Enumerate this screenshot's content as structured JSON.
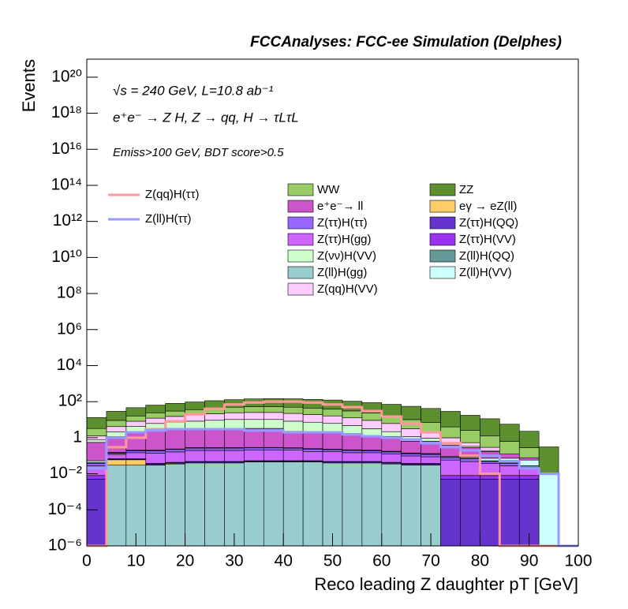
{
  "chart_data": {
    "type": "histogram",
    "title": "FCCAnalyses: FCC-ee Simulation (Delphes)",
    "annotations": [
      "√s = 240 GeV, L=10.8 ab⁻¹",
      "e⁺e⁻ → Z H, Z → qq, H → τLτL",
      "Emiss>100 GeV, BDT score>0.5"
    ],
    "x_label": "Reco leading Z daughter pT [GeV]",
    "y_label": "Events",
    "log_y": true,
    "stacked": true,
    "bins": [
      0,
      4,
      8,
      12,
      16,
      20,
      24,
      28,
      32,
      36,
      40,
      44,
      48,
      52,
      56,
      60,
      64,
      68,
      72,
      76,
      80,
      84,
      88,
      92,
      96,
      100
    ],
    "xlim": [
      0,
      100
    ],
    "xticks": [
      0,
      10,
      20,
      30,
      40,
      50,
      60,
      70,
      80,
      90,
      100
    ],
    "ylim": [
      1e-06,
      1e+21
    ],
    "yticks": [
      {
        "value": 1e-06,
        "label": "10⁻⁶"
      },
      {
        "value": 0.0001,
        "label": "10⁻⁴"
      },
      {
        "value": 0.01,
        "label": "10⁻²"
      },
      1,
      {
        "value": 100,
        "label": "10²"
      },
      {
        "value": 10000.0,
        "label": "10⁴"
      },
      {
        "value": 1000000.0,
        "label": "10⁶"
      },
      {
        "value": 100000000.0,
        "label": "10⁸"
      },
      {
        "value": 10000000000.0,
        "label": "10¹⁰"
      },
      {
        "value": 1000000000000.0,
        "label": "10¹²"
      },
      {
        "value": 100000000000000.0,
        "label": "10¹⁴"
      },
      {
        "value": 1e+16,
        "label": "10¹⁶"
      },
      {
        "value": 1e+18,
        "label": "10¹⁸"
      },
      {
        "value": 1e+20,
        "label": "10²⁰"
      }
    ],
    "series": [
      {
        "name": "Z(ll)H(gg)",
        "color": "#99cccc",
        "style": "fill",
        "values": [
          0,
          0.03,
          0.03,
          0.03,
          0.035,
          0.04,
          0.04,
          0.04,
          0.045,
          0.045,
          0.045,
          0.045,
          0.04,
          0.04,
          0.04,
          0.035,
          0.03,
          0.03,
          0,
          0,
          0,
          0,
          0,
          0,
          0
        ]
      },
      {
        "name": "eγ → eZ(ll)",
        "color": "#ffcc66",
        "style": "fill",
        "values": [
          0,
          0.03,
          0.03,
          0,
          0,
          0,
          0,
          0,
          0,
          0,
          0,
          0,
          0,
          0,
          0,
          0,
          0,
          0,
          0,
          0,
          0,
          0,
          0,
          0,
          0
        ]
      },
      {
        "name": "Z(ττ)H(QQ)",
        "color": "#6633cc",
        "style": "fill",
        "values": [
          0.005,
          0.005,
          0.005,
          0.005,
          0.005,
          0.005,
          0.005,
          0.005,
          0.005,
          0.005,
          0.005,
          0.005,
          0.005,
          0.005,
          0.005,
          0.005,
          0.005,
          0.005,
          0.005,
          0.005,
          0.005,
          0.005,
          0.005,
          0,
          0
        ]
      },
      {
        "name": "Z(ττ)H(VV)",
        "color": "#9933ee",
        "style": "fill",
        "values": [
          0.003,
          0.003,
          0.003,
          0.003,
          0.003,
          0.003,
          0.003,
          0.003,
          0.003,
          0.003,
          0.003,
          0.003,
          0.003,
          0.003,
          0.003,
          0.003,
          0.003,
          0.003,
          0.003,
          0.003,
          0.003,
          0.003,
          0.003,
          0,
          0
        ]
      },
      {
        "name": "Z(ττ)H(gg)",
        "color": "#cc66ff",
        "style": "fill",
        "values": [
          0.02,
          0.05,
          0.08,
          0.1,
          0.12,
          0.15,
          0.15,
          0.15,
          0.15,
          0.15,
          0.15,
          0.12,
          0.12,
          0.1,
          0.1,
          0.08,
          0.06,
          0.05,
          0.05,
          0.04,
          0.03,
          0.02,
          0.01,
          0,
          0
        ]
      },
      {
        "name": "Z(ττ)H(ττ)",
        "color": "#9966ff",
        "style": "fill",
        "values": [
          0.01,
          0.02,
          0.04,
          0.05,
          0.06,
          0.07,
          0.07,
          0.07,
          0.07,
          0.07,
          0.06,
          0.06,
          0.05,
          0.05,
          0.04,
          0.04,
          0.03,
          0.03,
          0.02,
          0.02,
          0.01,
          0.01,
          0.005,
          0,
          0
        ]
      },
      {
        "name": "Z(ll)H(QQ)",
        "color": "#669999",
        "style": "fill",
        "values": [
          0.005,
          0.005,
          0.005,
          0.005,
          0.005,
          0.005,
          0.005,
          0.005,
          0.005,
          0.005,
          0.005,
          0.005,
          0.005,
          0.005,
          0.005,
          0.005,
          0.005,
          0.005,
          0.005,
          0.005,
          0.005,
          0.005,
          0.005,
          0,
          0
        ]
      },
      {
        "name": "Z(ll)H(VV)",
        "color": "#ccffff",
        "style": "fill",
        "values": [
          0.01,
          0.01,
          0.01,
          0.01,
          0.01,
          0.01,
          0.01,
          0.01,
          0.01,
          0.01,
          0.01,
          0.01,
          0.01,
          0.01,
          0.01,
          0.01,
          0.01,
          0.01,
          0.01,
          0.01,
          0.02,
          0.03,
          0.03,
          0.01,
          0
        ]
      },
      {
        "name": "e⁺e⁻→ ll",
        "color": "#cc55cc",
        "style": "fill",
        "values": [
          0.5,
          1,
          2,
          3,
          3,
          3,
          3,
          3,
          3,
          3,
          2,
          2,
          2,
          1.5,
          1,
          1,
          0.5,
          0.5,
          0.3,
          0.2,
          0.1,
          0.05,
          0.02,
          0,
          0
        ]
      },
      {
        "name": "Z(νν)H(VV)",
        "color": "#ccffcc",
        "style": "fill",
        "values": [
          0.2,
          1,
          2,
          3,
          4,
          5,
          6,
          7,
          7,
          7,
          6,
          5,
          4,
          3,
          2,
          1,
          0.5,
          0.3,
          0.1,
          0.05,
          0.02,
          0,
          0,
          0,
          0
        ]
      },
      {
        "name": "Z(qq)H(VV)",
        "color": "#ffccff",
        "style": "fill",
        "values": [
          0.5,
          2,
          4,
          6,
          8,
          10,
          12,
          14,
          15,
          15,
          14,
          12,
          10,
          8,
          6,
          4,
          2,
          1,
          0.5,
          0.2,
          0.1,
          0,
          0,
          0,
          0
        ]
      },
      {
        "name": "WW",
        "color": "#99cc66",
        "style": "fill",
        "values": [
          2,
          5,
          8,
          12,
          15,
          18,
          22,
          25,
          27,
          28,
          27,
          25,
          22,
          18,
          14,
          10,
          7,
          5,
          3,
          2,
          1,
          0.5,
          0.2,
          0,
          0
        ]
      },
      {
        "name": "ZZ",
        "color": "#5e8f2e",
        "style": "fill",
        "values": [
          10,
          20,
          30,
          40,
          50,
          60,
          70,
          80,
          90,
          95,
          95,
          90,
          85,
          75,
          65,
          55,
          45,
          35,
          25,
          15,
          10,
          5,
          2,
          0.3,
          0
        ]
      },
      {
        "name": "Z(qq)H(ττ)",
        "color": "#ff9999",
        "style": "line",
        "values": [
          0,
          0.3,
          1,
          3,
          8,
          20,
          40,
          70,
          90,
          100,
          100,
          90,
          70,
          50,
          30,
          15,
          6,
          2,
          0.5,
          0.1,
          0.01,
          0,
          0,
          0,
          0
        ]
      },
      {
        "name": "Z(ll)H(ττ)",
        "color": "#9999ff",
        "style": "line",
        "values": [
          0.02,
          1,
          2,
          2.5,
          3,
          3,
          3,
          3,
          2.5,
          2.5,
          2,
          2,
          2,
          1.5,
          1.2,
          1,
          0.8,
          0.5,
          0.3,
          0.2,
          0.1,
          0.05,
          0.02,
          0.01,
          0
        ]
      }
    ]
  }
}
